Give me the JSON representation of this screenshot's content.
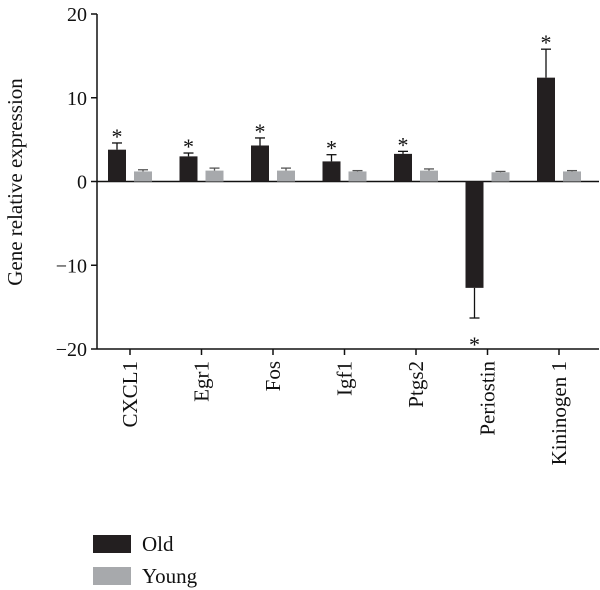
{
  "chart_data": {
    "type": "bar",
    "title": "",
    "xlabel": "",
    "ylabel": "Gene relative expression",
    "ylim": [
      -20,
      20
    ],
    "yticks": [
      20,
      10,
      0,
      -10,
      -20
    ],
    "ytick_labels": [
      "20",
      "10",
      "0",
      "−10",
      "−20"
    ],
    "categories": [
      "CXCL1",
      "Egr1",
      "Fos",
      "Igf1",
      "Ptgs2",
      "Periostin",
      "Kininogen 1"
    ],
    "series": [
      {
        "name": "Old",
        "color": "#231f20",
        "values": [
          3.8,
          3.0,
          4.3,
          2.4,
          3.3,
          -12.7,
          12.4
        ],
        "errors": [
          0.8,
          0.4,
          0.9,
          0.8,
          0.3,
          3.6,
          3.4
        ],
        "significance": [
          "*",
          "*",
          "*",
          "*",
          "*",
          "*",
          "*"
        ]
      },
      {
        "name": "Young",
        "color": "#a7a9ac",
        "values": [
          1.2,
          1.3,
          1.3,
          1.2,
          1.3,
          1.1,
          1.2
        ],
        "errors": [
          0.2,
          0.3,
          0.3,
          0.1,
          0.2,
          0.1,
          0.1
        ]
      }
    ],
    "grid": false,
    "legend_position": "bottom-left"
  }
}
